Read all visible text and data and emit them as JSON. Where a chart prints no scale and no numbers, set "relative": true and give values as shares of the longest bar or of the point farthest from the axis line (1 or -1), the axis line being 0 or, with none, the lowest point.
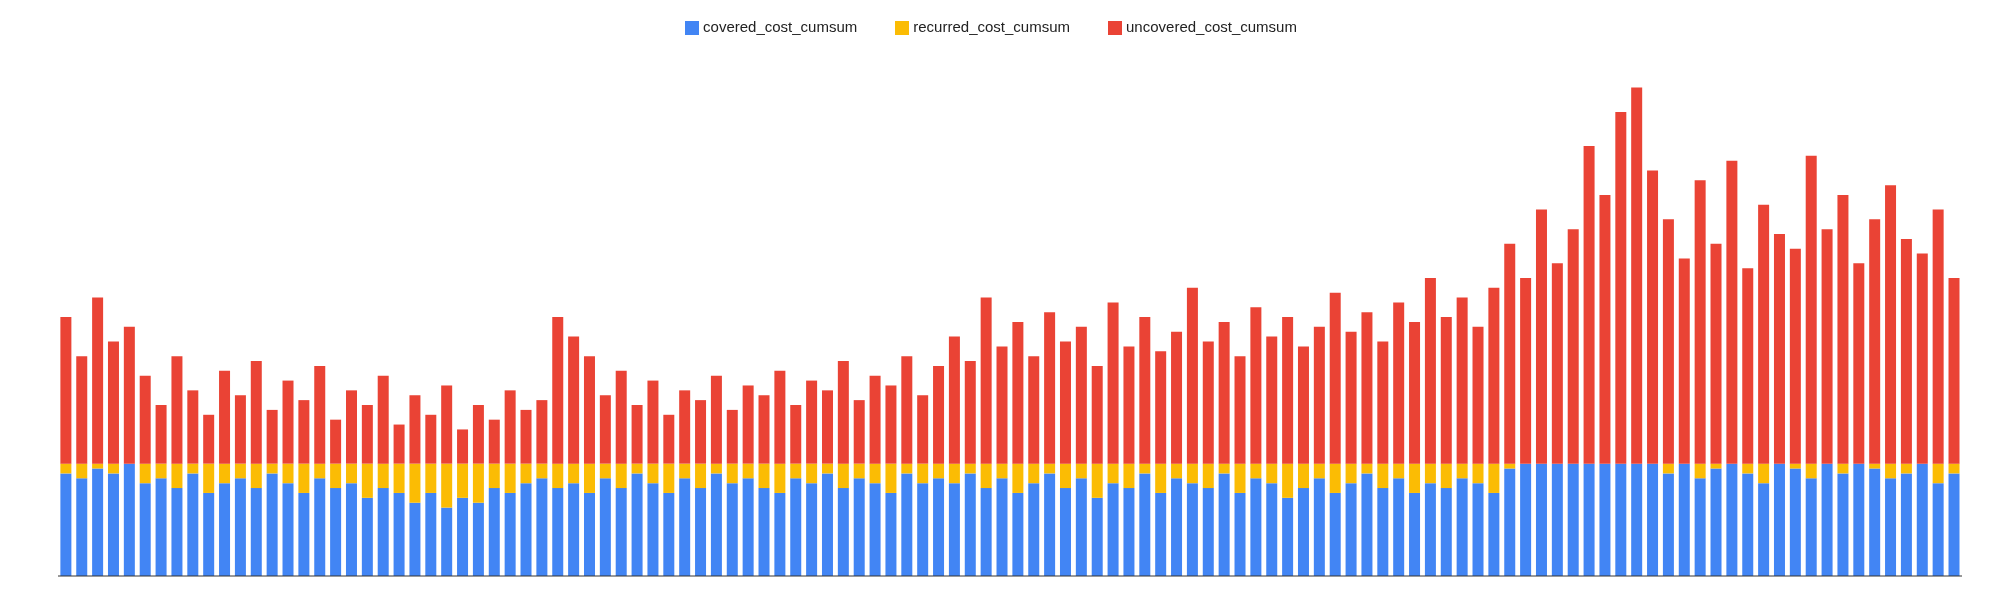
{
  "chart_data": {
    "type": "bar",
    "stacked": true,
    "relative": true,
    "legend": "top",
    "categories": [
      null,
      null,
      null,
      null,
      null,
      null,
      null,
      null,
      null,
      null,
      null,
      null,
      null,
      null,
      null,
      null,
      null,
      null,
      null,
      null,
      null,
      null,
      null,
      null,
      null,
      null,
      null,
      null,
      null,
      null,
      null,
      null,
      null,
      null,
      null,
      null,
      null,
      null,
      null,
      null,
      null,
      null,
      null,
      null,
      null,
      null,
      null,
      null,
      null,
      null,
      null,
      null,
      null,
      null,
      null,
      null,
      null,
      null,
      null,
      null,
      null,
      null,
      null,
      null,
      null,
      null,
      null,
      null,
      null,
      null,
      null,
      null,
      null,
      null,
      null,
      null,
      null,
      null,
      null,
      null,
      null,
      null,
      null,
      null,
      null,
      null,
      null,
      null,
      null,
      null,
      null,
      null,
      null,
      null,
      null,
      null,
      null,
      null,
      null,
      null,
      null,
      null,
      null,
      null,
      null,
      null,
      null,
      null,
      null,
      null,
      null,
      null,
      null,
      null,
      null,
      null,
      null,
      null,
      null,
      null
    ],
    "series": [
      {
        "name": "covered_cost_cumsum",
        "color": "#4285f4",
        "values": [
          0.21,
          0.2,
          0.22,
          0.21,
          0.23,
          0.19,
          0.2,
          0.18,
          0.21,
          0.17,
          0.19,
          0.2,
          0.18,
          0.21,
          0.19,
          0.17,
          0.2,
          0.18,
          0.19,
          0.16,
          0.18,
          0.17,
          0.15,
          0.17,
          0.14,
          0.16,
          0.15,
          0.18,
          0.17,
          0.19,
          0.2,
          0.18,
          0.19,
          0.17,
          0.2,
          0.18,
          0.21,
          0.19,
          0.17,
          0.2,
          0.18,
          0.21,
          0.19,
          0.2,
          0.18,
          0.17,
          0.2,
          0.19,
          0.21,
          0.18,
          0.2,
          0.19,
          0.17,
          0.21,
          0.19,
          0.2,
          0.19,
          0.21,
          0.18,
          0.2,
          0.17,
          0.19,
          0.21,
          0.18,
          0.2,
          0.16,
          0.19,
          0.18,
          0.21,
          0.17,
          0.2,
          0.19,
          0.18,
          0.21,
          0.17,
          0.2,
          0.19,
          0.16,
          0.18,
          0.2,
          0.17,
          0.19,
          0.21,
          0.18,
          0.2,
          0.17,
          0.19,
          0.18,
          0.2,
          0.19,
          0.17,
          0.22,
          0.23,
          0.23,
          0.23,
          0.23,
          0.23,
          0.23,
          0.23,
          0.23,
          0.23,
          0.21,
          0.23,
          0.2,
          0.22,
          0.23,
          0.21,
          0.19,
          0.23,
          0.22,
          0.2,
          0.23,
          0.21,
          0.23,
          0.22,
          0.2,
          0.21,
          0.23,
          0.19,
          0.21
        ]
      },
      {
        "name": "recurred_cost_cumsum",
        "color": "#fbbc04",
        "values": [
          0.02,
          0.03,
          0.01,
          0.02,
          0,
          0.04,
          0.03,
          0.05,
          0.02,
          0.06,
          0.04,
          0.03,
          0.05,
          0.02,
          0.04,
          0.06,
          0.03,
          0.05,
          0.04,
          0.07,
          0.05,
          0.06,
          0.08,
          0.06,
          0.09,
          0.07,
          0.08,
          0.05,
          0.06,
          0.04,
          0.03,
          0.05,
          0.04,
          0.06,
          0.03,
          0.05,
          0.02,
          0.04,
          0.06,
          0.03,
          0.05,
          0.02,
          0.04,
          0.03,
          0.05,
          0.06,
          0.03,
          0.04,
          0.02,
          0.05,
          0.03,
          0.04,
          0.06,
          0.02,
          0.04,
          0.03,
          0.04,
          0.02,
          0.05,
          0.03,
          0.06,
          0.04,
          0.02,
          0.05,
          0.03,
          0.07,
          0.04,
          0.05,
          0.02,
          0.06,
          0.03,
          0.04,
          0.05,
          0.02,
          0.06,
          0.03,
          0.04,
          0.07,
          0.05,
          0.03,
          0.06,
          0.04,
          0.02,
          0.05,
          0.03,
          0.06,
          0.04,
          0.05,
          0.03,
          0.04,
          0.06,
          0.01,
          0,
          0,
          0,
          0,
          0,
          0,
          0,
          0,
          0,
          0.02,
          0,
          0.03,
          0.01,
          0,
          0.02,
          0.04,
          0,
          0.01,
          0.03,
          0,
          0.02,
          0,
          0.01,
          0.03,
          0.02,
          0,
          0.04,
          0.02
        ]
      },
      {
        "name": "uncovered_cost_cumsum",
        "color": "#ea4335",
        "values": [
          0.3,
          0.22,
          0.34,
          0.25,
          0.28,
          0.18,
          0.12,
          0.22,
          0.15,
          0.1,
          0.19,
          0.14,
          0.21,
          0.11,
          0.17,
          0.13,
          0.2,
          0.09,
          0.15,
          0.12,
          0.18,
          0.08,
          0.14,
          0.1,
          0.16,
          0.07,
          0.12,
          0.09,
          0.15,
          0.11,
          0.13,
          0.3,
          0.26,
          0.22,
          0.14,
          0.19,
          0.12,
          0.17,
          0.1,
          0.15,
          0.13,
          0.18,
          0.11,
          0.16,
          0.14,
          0.19,
          0.12,
          0.17,
          0.15,
          0.21,
          0.13,
          0.18,
          0.16,
          0.22,
          0.14,
          0.2,
          0.26,
          0.21,
          0.34,
          0.24,
          0.29,
          0.22,
          0.31,
          0.25,
          0.28,
          0.2,
          0.33,
          0.24,
          0.3,
          0.23,
          0.27,
          0.36,
          0.25,
          0.29,
          0.22,
          0.32,
          0.26,
          0.3,
          0.24,
          0.28,
          0.35,
          0.27,
          0.31,
          0.25,
          0.33,
          0.29,
          0.38,
          0.3,
          0.34,
          0.28,
          0.36,
          0.45,
          0.38,
          0.52,
          0.41,
          0.48,
          0.65,
          0.55,
          0.72,
          0.77,
          0.6,
          0.5,
          0.42,
          0.58,
          0.45,
          0.62,
          0.4,
          0.53,
          0.47,
          0.44,
          0.63,
          0.48,
          0.55,
          0.41,
          0.5,
          0.57,
          0.46,
          0.43,
          0.52,
          0.38
        ]
      }
    ]
  }
}
